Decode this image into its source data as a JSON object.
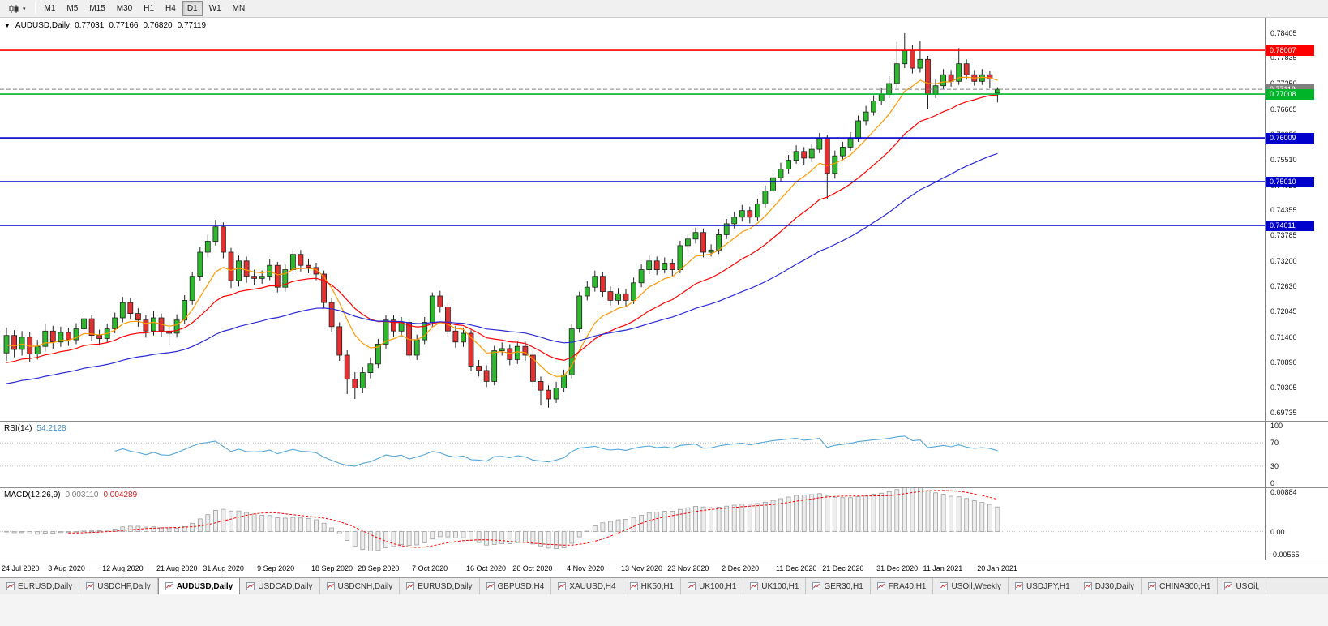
{
  "icons": {
    "symbol_dropdown": "▼",
    "chart_button_caret": "▾"
  },
  "toolbar": {
    "periods": [
      "M1",
      "M5",
      "M15",
      "M30",
      "H1",
      "H4",
      "D1",
      "W1",
      "MN"
    ],
    "active_period": "D1"
  },
  "chart": {
    "title_symbol": "AUDUSD,Daily",
    "ohlc": {
      "open": "0.77031",
      "high": "0.77166",
      "low": "0.76820",
      "close": "0.77119"
    },
    "price_axis": [
      "0.78405",
      "0.77835",
      "0.77250",
      "0.76665",
      "0.76080",
      "0.75510",
      "0.74925",
      "0.74355",
      "0.73785",
      "0.73200",
      "0.72630",
      "0.72045",
      "0.71460",
      "0.70890",
      "0.70305",
      "0.69735"
    ],
    "levels": [
      {
        "price": 0.78007,
        "label": "0.78007",
        "color": "#ff0000"
      },
      {
        "price": 0.77008,
        "label": "0.77008",
        "color": "#00b42a"
      },
      {
        "price": 0.76009,
        "label": "0.76009",
        "color": "#0000cd"
      },
      {
        "price": 0.7501,
        "label": "0.75010",
        "color": "#0000cd"
      },
      {
        "price": 0.74011,
        "label": "0.74011",
        "color": "#0000cd"
      }
    ],
    "current_price": {
      "value": 0.77119,
      "label": "0.77119",
      "color": "#808080"
    },
    "dates": [
      {
        "label": "24 Jul 2020",
        "i": 0
      },
      {
        "label": "3 Aug 2020",
        "i": 6
      },
      {
        "label": "12 Aug 2020",
        "i": 13
      },
      {
        "label": "21 Aug 2020",
        "i": 20
      },
      {
        "label": "31 Aug 2020",
        "i": 26
      },
      {
        "label": "9 Sep 2020",
        "i": 33
      },
      {
        "label": "18 Sep 2020",
        "i": 40
      },
      {
        "label": "28 Sep 2020",
        "i": 46
      },
      {
        "label": "7 Oct 2020",
        "i": 53
      },
      {
        "label": "16 Oct 2020",
        "i": 60
      },
      {
        "label": "26 Oct 2020",
        "i": 66
      },
      {
        "label": "4 Nov 2020",
        "i": 73
      },
      {
        "label": "13 Nov 2020",
        "i": 80
      },
      {
        "label": "23 Nov 2020",
        "i": 86
      },
      {
        "label": "2 Dec 2020",
        "i": 93
      },
      {
        "label": "11 Dec 2020",
        "i": 100
      },
      {
        "label": "21 Dec 2020",
        "i": 106
      },
      {
        "label": "31 Dec 2020",
        "i": 113
      },
      {
        "label": "11 Jan 2021",
        "i": 119
      },
      {
        "label": "20 Jan 2021",
        "i": 126
      }
    ]
  },
  "rsi": {
    "name": "RSI(14)",
    "value": "54.2128",
    "period": 14,
    "axis": [
      "100",
      "70",
      "30",
      "0"
    ],
    "levels": [
      70,
      30
    ],
    "color": "#53a6d8"
  },
  "macd": {
    "name": "MACD(12,26,9)",
    "main_value": "0.003110",
    "signal_value": "0.004289",
    "fast": 12,
    "slow": 26,
    "signal": 9,
    "axis": [
      "0.00884",
      "0.00",
      "-0.00565"
    ]
  },
  "tabs": {
    "active_index": 2,
    "items": [
      "EURUSD,Daily",
      "USDCHF,Daily",
      "AUDUSD,Daily",
      "USDCAD,Daily",
      "USDCNH,Daily",
      "EURUSD,Daily",
      "GBPUSD,H4",
      "XAUUSD,H4",
      "HK50,H1",
      "UK100,H1",
      "UK100,H1",
      "GER30,H1",
      "FRA40,H1",
      "USOil,Weekly",
      "USDJPY,H1",
      "DJ30,Daily",
      "CHINA300,H1",
      "USOil,"
    ]
  },
  "chart_data": {
    "type": "candlestick",
    "symbol": "AUDUSD",
    "timeframe": "Daily",
    "title": "AUDUSD,Daily",
    "ylim": [
      0.6955,
      0.7875
    ],
    "rsi_range": [
      0,
      100
    ],
    "macd_range": [
      -0.0063,
      0.0098
    ],
    "grid": false,
    "colors": {
      "up": "#2db82d",
      "down": "#e33030",
      "outline": "#222222"
    },
    "ma": [
      {
        "period": 8,
        "color": "#ff9900",
        "start": 0.7128
      },
      {
        "period": 20,
        "color": "#ff0000",
        "start": 0.7088
      },
      {
        "period": 50,
        "color": "#2929d6",
        "start": 0.704
      }
    ],
    "key_levels": [
      0.78007,
      0.77008,
      0.76009,
      0.7501,
      0.74011
    ],
    "candles": [
      [
        0.711,
        0.7168,
        0.7092,
        0.715
      ],
      [
        0.715,
        0.7162,
        0.71,
        0.7118
      ],
      [
        0.7118,
        0.716,
        0.7104,
        0.7146
      ],
      [
        0.7146,
        0.7158,
        0.709,
        0.7108
      ],
      [
        0.7108,
        0.714,
        0.7095,
        0.7125
      ],
      [
        0.7125,
        0.7176,
        0.7113,
        0.716
      ],
      [
        0.716,
        0.7172,
        0.712,
        0.7135
      ],
      [
        0.7135,
        0.717,
        0.7124,
        0.7157
      ],
      [
        0.7157,
        0.7168,
        0.7126,
        0.714
      ],
      [
        0.714,
        0.7178,
        0.713,
        0.7165
      ],
      [
        0.7165,
        0.72,
        0.7155,
        0.7188
      ],
      [
        0.7188,
        0.7196,
        0.7138,
        0.715
      ],
      [
        0.715,
        0.7163,
        0.7128,
        0.7143
      ],
      [
        0.7143,
        0.7177,
        0.7133,
        0.7165
      ],
      [
        0.7165,
        0.7202,
        0.7155,
        0.719
      ],
      [
        0.719,
        0.7238,
        0.718,
        0.7225
      ],
      [
        0.7225,
        0.7235,
        0.7186,
        0.72
      ],
      [
        0.72,
        0.7212,
        0.717,
        0.7185
      ],
      [
        0.7185,
        0.7196,
        0.7145,
        0.716
      ],
      [
        0.716,
        0.7205,
        0.715,
        0.719
      ],
      [
        0.719,
        0.72,
        0.7146,
        0.716
      ],
      [
        0.716,
        0.7175,
        0.713,
        0.7155
      ],
      [
        0.7155,
        0.7198,
        0.7145,
        0.7185
      ],
      [
        0.7185,
        0.7242,
        0.7176,
        0.723
      ],
      [
        0.723,
        0.7295,
        0.722,
        0.7285
      ],
      [
        0.7285,
        0.7352,
        0.7275,
        0.734
      ],
      [
        0.734,
        0.738,
        0.7328,
        0.7365
      ],
      [
        0.7365,
        0.7414,
        0.7355,
        0.7398
      ],
      [
        0.7398,
        0.7408,
        0.7326,
        0.734
      ],
      [
        0.734,
        0.735,
        0.7258,
        0.7275
      ],
      [
        0.7275,
        0.7332,
        0.7262,
        0.732
      ],
      [
        0.732,
        0.733,
        0.727,
        0.7285
      ],
      [
        0.7285,
        0.73,
        0.7266,
        0.728
      ],
      [
        0.728,
        0.7298,
        0.7268,
        0.7285
      ],
      [
        0.7285,
        0.7325,
        0.7276,
        0.731
      ],
      [
        0.731,
        0.7318,
        0.7248,
        0.726
      ],
      [
        0.726,
        0.7312,
        0.725,
        0.73
      ],
      [
        0.73,
        0.7348,
        0.729,
        0.7335
      ],
      [
        0.7335,
        0.7345,
        0.7296,
        0.731
      ],
      [
        0.731,
        0.7324,
        0.7292,
        0.7305
      ],
      [
        0.7305,
        0.7316,
        0.7276,
        0.729
      ],
      [
        0.729,
        0.7298,
        0.7212,
        0.7225
      ],
      [
        0.7225,
        0.7236,
        0.7158,
        0.717
      ],
      [
        0.717,
        0.718,
        0.7092,
        0.7105
      ],
      [
        0.7105,
        0.7116,
        0.7016,
        0.705
      ],
      [
        0.705,
        0.7066,
        0.7005,
        0.703
      ],
      [
        0.703,
        0.7078,
        0.7018,
        0.7065
      ],
      [
        0.7065,
        0.71,
        0.7052,
        0.7085
      ],
      [
        0.7085,
        0.7142,
        0.7075,
        0.713
      ],
      [
        0.713,
        0.7196,
        0.712,
        0.7185
      ],
      [
        0.7185,
        0.7196,
        0.7146,
        0.716
      ],
      [
        0.716,
        0.7192,
        0.7148,
        0.718
      ],
      [
        0.718,
        0.7188,
        0.7096,
        0.7105
      ],
      [
        0.7105,
        0.7152,
        0.7094,
        0.714
      ],
      [
        0.714,
        0.7192,
        0.713,
        0.718
      ],
      [
        0.718,
        0.7248,
        0.717,
        0.724
      ],
      [
        0.724,
        0.7252,
        0.7202,
        0.7215
      ],
      [
        0.7215,
        0.7224,
        0.7148,
        0.716
      ],
      [
        0.716,
        0.7172,
        0.7122,
        0.7135
      ],
      [
        0.7135,
        0.7168,
        0.7124,
        0.7155
      ],
      [
        0.7155,
        0.7162,
        0.7068,
        0.708
      ],
      [
        0.708,
        0.7094,
        0.7056,
        0.707
      ],
      [
        0.707,
        0.7082,
        0.7032,
        0.7045
      ],
      [
        0.7045,
        0.7126,
        0.7036,
        0.7115
      ],
      [
        0.7115,
        0.7134,
        0.7104,
        0.712
      ],
      [
        0.712,
        0.713,
        0.7082,
        0.7095
      ],
      [
        0.7095,
        0.7136,
        0.7085,
        0.7125
      ],
      [
        0.7125,
        0.7136,
        0.7092,
        0.7105
      ],
      [
        0.7105,
        0.7114,
        0.7033,
        0.7045
      ],
      [
        0.7045,
        0.7056,
        0.699,
        0.7025
      ],
      [
        0.7025,
        0.7036,
        0.6985,
        0.7005
      ],
      [
        0.7005,
        0.7044,
        0.6996,
        0.703
      ],
      [
        0.703,
        0.7072,
        0.702,
        0.706
      ],
      [
        0.706,
        0.7176,
        0.7052,
        0.7165
      ],
      [
        0.7165,
        0.725,
        0.7156,
        0.724
      ],
      [
        0.724,
        0.7274,
        0.723,
        0.726
      ],
      [
        0.726,
        0.7298,
        0.725,
        0.7285
      ],
      [
        0.7285,
        0.7294,
        0.7238,
        0.725
      ],
      [
        0.725,
        0.7262,
        0.7218,
        0.723
      ],
      [
        0.723,
        0.7258,
        0.722,
        0.7245
      ],
      [
        0.7245,
        0.7256,
        0.7216,
        0.723
      ],
      [
        0.723,
        0.7282,
        0.7222,
        0.727
      ],
      [
        0.727,
        0.7312,
        0.726,
        0.73
      ],
      [
        0.73,
        0.7332,
        0.729,
        0.732
      ],
      [
        0.732,
        0.733,
        0.7288,
        0.73
      ],
      [
        0.73,
        0.7328,
        0.7292,
        0.7315
      ],
      [
        0.7315,
        0.7324,
        0.7286,
        0.73
      ],
      [
        0.73,
        0.7366,
        0.7292,
        0.7355
      ],
      [
        0.7355,
        0.7382,
        0.7344,
        0.737
      ],
      [
        0.737,
        0.7396,
        0.736,
        0.7385
      ],
      [
        0.7385,
        0.7394,
        0.7328,
        0.734
      ],
      [
        0.734,
        0.7358,
        0.733,
        0.7345
      ],
      [
        0.7345,
        0.7392,
        0.7336,
        0.738
      ],
      [
        0.738,
        0.7416,
        0.737,
        0.7405
      ],
      [
        0.7405,
        0.7432,
        0.7394,
        0.742
      ],
      [
        0.742,
        0.7448,
        0.741,
        0.7435
      ],
      [
        0.7435,
        0.7444,
        0.7406,
        0.742
      ],
      [
        0.742,
        0.7462,
        0.7412,
        0.745
      ],
      [
        0.745,
        0.7492,
        0.7442,
        0.748
      ],
      [
        0.748,
        0.7522,
        0.7472,
        0.751
      ],
      [
        0.751,
        0.7544,
        0.75,
        0.753
      ],
      [
        0.753,
        0.7562,
        0.752,
        0.755
      ],
      [
        0.755,
        0.7584,
        0.7542,
        0.757
      ],
      [
        0.757,
        0.758,
        0.754,
        0.7555
      ],
      [
        0.7555,
        0.7588,
        0.7546,
        0.7575
      ],
      [
        0.7575,
        0.7612,
        0.7566,
        0.76
      ],
      [
        0.76,
        0.7608,
        0.7462,
        0.752
      ],
      [
        0.752,
        0.7572,
        0.7508,
        0.756
      ],
      [
        0.756,
        0.7592,
        0.755,
        0.758
      ],
      [
        0.758,
        0.7614,
        0.7572,
        0.76
      ],
      [
        0.76,
        0.7652,
        0.7592,
        0.764
      ],
      [
        0.764,
        0.7674,
        0.763,
        0.766
      ],
      [
        0.766,
        0.7698,
        0.7652,
        0.7685
      ],
      [
        0.7685,
        0.7714,
        0.7676,
        0.77
      ],
      [
        0.77,
        0.7742,
        0.7692,
        0.7725
      ],
      [
        0.7725,
        0.782,
        0.7716,
        0.777
      ],
      [
        0.777,
        0.784,
        0.776,
        0.78
      ],
      [
        0.78,
        0.7812,
        0.7748,
        0.776
      ],
      [
        0.776,
        0.7822,
        0.775,
        0.778
      ],
      [
        0.778,
        0.7788,
        0.7666,
        0.77
      ],
      [
        0.77,
        0.7734,
        0.7692,
        0.772
      ],
      [
        0.772,
        0.7758,
        0.7712,
        0.7745
      ],
      [
        0.7745,
        0.7756,
        0.7718,
        0.773
      ],
      [
        0.773,
        0.7806,
        0.7722,
        0.777
      ],
      [
        0.777,
        0.778,
        0.7734,
        0.7745
      ],
      [
        0.7745,
        0.7756,
        0.772,
        0.773
      ],
      [
        0.773,
        0.7758,
        0.7722,
        0.7745
      ],
      [
        0.7745,
        0.7754,
        0.7714,
        0.7735
      ],
      [
        0.77031,
        0.77166,
        0.7682,
        0.77119
      ]
    ]
  }
}
